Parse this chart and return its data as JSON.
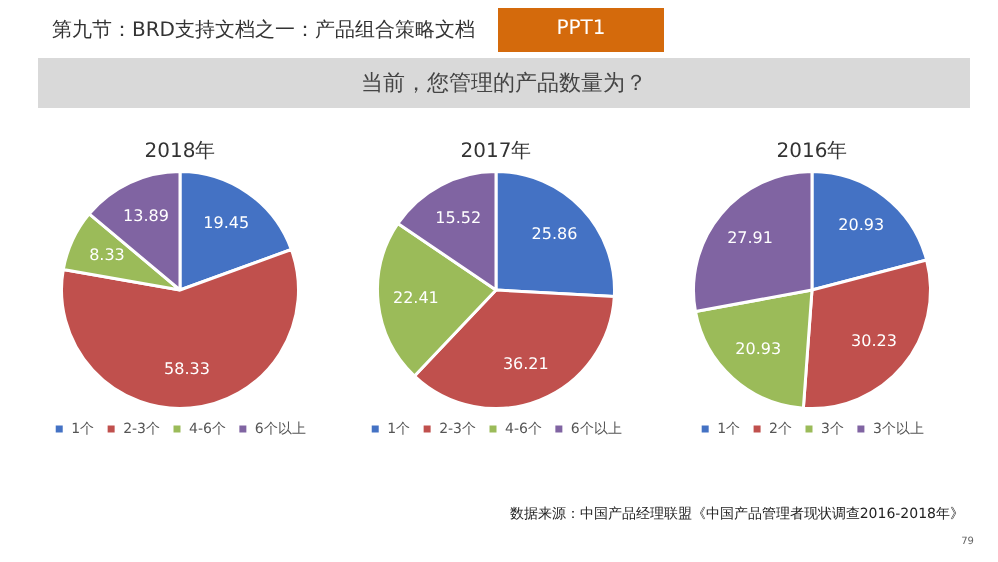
{
  "chart_data": [
    {
      "type": "pie",
      "title": "2018年",
      "categories": [
        "1个",
        "2-3个",
        "4-6个",
        "6个以上"
      ],
      "values": [
        19.45,
        58.33,
        8.33,
        13.89
      ],
      "colors": [
        "#4472c4",
        "#c0504d",
        "#9bbb59",
        "#8064a2"
      ],
      "data_labels": true,
      "legend": "bottom"
    },
    {
      "type": "pie",
      "title": "2017年",
      "categories": [
        "1个",
        "2-3个",
        "4-6个",
        "6个以上"
      ],
      "values": [
        25.86,
        36.21,
        22.41,
        15.52
      ],
      "colors": [
        "#4472c4",
        "#c0504d",
        "#9bbb59",
        "#8064a2"
      ],
      "data_labels": true,
      "legend": "bottom"
    },
    {
      "type": "pie",
      "title": "2016年",
      "categories": [
        "1个",
        "2个",
        "3个",
        "3个以上"
      ],
      "values": [
        20.93,
        30.23,
        20.93,
        27.91
      ],
      "colors": [
        "#4472c4",
        "#c0504d",
        "#9bbb59",
        "#8064a2"
      ],
      "data_labels": true,
      "legend": "bottom"
    },
    {
      "type": "other",
      "title": "第九节：BRD支持文档之一：产品组合策略文档",
      "subtitle": "当前，您管理的产品数量为？",
      "annotations": [
        "PPT1",
        "数据来源：中国产品经理联盟《中国产品管理者现状调查2016-2018年》",
        "79"
      ]
    }
  ]
}
